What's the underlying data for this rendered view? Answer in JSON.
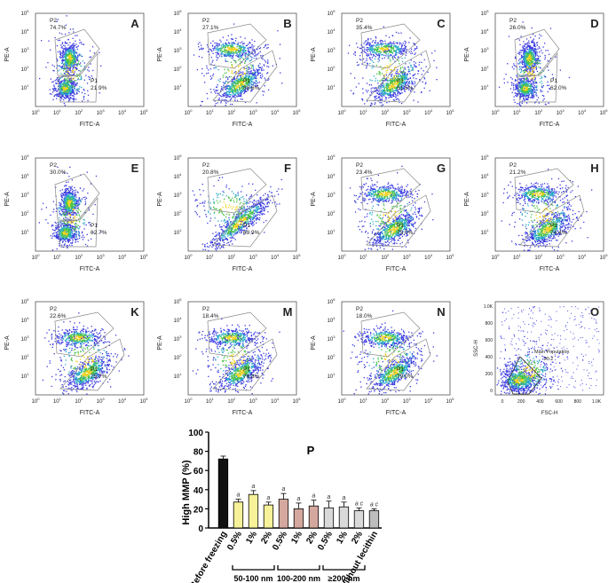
{
  "panels": [
    {
      "letter": "A",
      "xlabel": "FITC-A",
      "ylabel": "PE-A",
      "gates": [
        {
          "name": "P2",
          "pct": "74.7%"
        },
        {
          "name": "P1",
          "pct": "21.9%"
        }
      ],
      "shape": "vertical"
    },
    {
      "letter": "B",
      "xlabel": "FITC-A",
      "ylabel": "PE-A",
      "gates": [
        {
          "name": "P2",
          "pct": "27.1%"
        },
        {
          "name": "P1",
          "pct": "69.6%"
        }
      ],
      "shape": "diag"
    },
    {
      "letter": "C",
      "xlabel": "FITC-A",
      "ylabel": "PE-A",
      "gates": [
        {
          "name": "P2",
          "pct": "35.4%"
        },
        {
          "name": "P1",
          "pct": "61.5%"
        }
      ],
      "shape": "diag"
    },
    {
      "letter": "D",
      "xlabel": "FITC-A",
      "ylabel": "PE-A",
      "gates": [
        {
          "name": "P2",
          "pct": "26.0%"
        },
        {
          "name": "P1",
          "pct": "62.0%"
        }
      ],
      "shape": "vertical"
    },
    {
      "letter": "E",
      "xlabel": "FITC-A",
      "ylabel": "PE-A",
      "gates": [
        {
          "name": "P2",
          "pct": "30.0%"
        },
        {
          "name": "P1",
          "pct": "62.7%"
        }
      ],
      "shape": "vertical"
    },
    {
      "letter": "F",
      "xlabel": "FITC-A",
      "ylabel": "PE-A",
      "gates": [
        {
          "name": "P2",
          "pct": "20.8%"
        },
        {
          "name": "P1",
          "pct": "69.9%"
        }
      ],
      "shape": "streak"
    },
    {
      "letter": "G",
      "xlabel": "FITC-A",
      "ylabel": "PE-A",
      "gates": [
        {
          "name": "P2",
          "pct": "23.4%"
        },
        {
          "name": "P1",
          "pct": "75.0%"
        }
      ],
      "shape": "diag"
    },
    {
      "letter": "H",
      "xlabel": "FITC-A",
      "ylabel": "PE-A",
      "gates": [
        {
          "name": "P2",
          "pct": "21.2%"
        },
        {
          "name": "P1",
          "pct": "74.4%"
        }
      ],
      "shape": "diag"
    },
    {
      "letter": "K",
      "xlabel": "FITC-A",
      "ylabel": "PE-A",
      "gates": [
        {
          "name": "P2",
          "pct": "22.6%"
        },
        {
          "name": "P1",
          "pct": "75.7%"
        }
      ],
      "shape": "diag"
    },
    {
      "letter": "M",
      "xlabel": "FITC-A",
      "ylabel": "PE-A",
      "gates": [
        {
          "name": "P2",
          "pct": "18.4%"
        },
        {
          "name": "P1",
          "pct": "76.8%"
        }
      ],
      "shape": "diag"
    },
    {
      "letter": "N",
      "xlabel": "FITC-A",
      "ylabel": "PE-A",
      "gates": [
        {
          "name": "P2",
          "pct": "18.0%"
        },
        {
          "name": "P1",
          "pct": "79.0%"
        }
      ],
      "shape": "diag"
    }
  ],
  "panel_o": {
    "letter": "O",
    "xlabel": "FSC-H",
    "ylabel": "SSC-H",
    "gate_name": "Main Population",
    "gate_value": "90.2",
    "xticks": [
      "0",
      "200",
      "400",
      "600",
      "800",
      "1.0K"
    ],
    "yticks": [
      "0",
      "200",
      "400",
      "600",
      "800",
      "1.0K"
    ]
  },
  "log_ticks": {
    "base": "10",
    "exponents": [
      "0",
      "1",
      "2",
      "3",
      "4",
      "5"
    ]
  },
  "chart_data": {
    "type": "bar",
    "letter": "P",
    "ylabel": "High MMP (%)",
    "ylim": [
      0,
      100
    ],
    "yticks": [
      0,
      20,
      40,
      60,
      80,
      100
    ],
    "categories": [
      "Before freezing",
      "0.5%",
      "1%",
      "2%",
      "0.5%",
      "1%",
      "2%",
      "0.5%",
      "1%",
      "2%",
      "Without lecithin"
    ],
    "values": [
      72,
      27,
      35,
      24,
      30,
      20,
      23,
      21,
      22,
      18,
      18
    ],
    "errors": [
      3,
      3,
      4,
      3,
      6,
      6,
      6,
      7,
      5,
      3,
      2
    ],
    "colors": [
      "#111111",
      "#f7f29a",
      "#f7f29a",
      "#f7f29a",
      "#d4a89e",
      "#d4a89e",
      "#d4a89e",
      "#d9d9d9",
      "#d9d9d9",
      "#d9d9d9",
      "#bdbdbd"
    ],
    "annotations": [
      "",
      "a",
      "a",
      "a",
      "a",
      "a",
      "a",
      "a",
      "a",
      "a c",
      "a c"
    ],
    "groups": [
      {
        "label": "50-100 nm",
        "from": 1,
        "to": 3
      },
      {
        "label": "100-200 nm",
        "from": 4,
        "to": 6
      },
      {
        "label": "≥200 nm",
        "from": 7,
        "to": 9
      }
    ]
  }
}
